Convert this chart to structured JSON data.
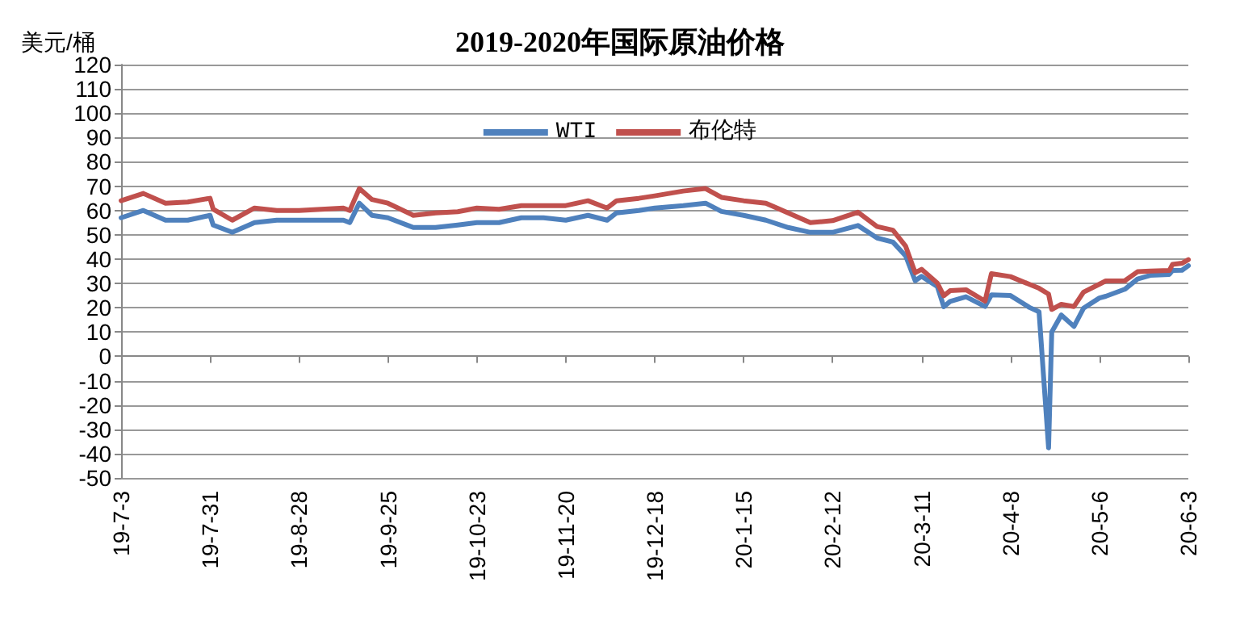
{
  "chart_data": {
    "type": "line",
    "title": "2019-2020年国际原油价格",
    "ylabel": "美元/桶",
    "x": [
      "2019-07-03",
      "2019-07-10",
      "2019-07-17",
      "2019-07-24",
      "2019-07-31",
      "2019-08-01",
      "2019-08-07",
      "2019-08-14",
      "2019-08-21",
      "2019-08-28",
      "2019-09-04",
      "2019-09-11",
      "2019-09-13",
      "2019-09-16",
      "2019-09-20",
      "2019-09-25",
      "2019-10-03",
      "2019-10-10",
      "2019-10-17",
      "2019-10-23",
      "2019-10-30",
      "2019-11-06",
      "2019-11-13",
      "2019-11-20",
      "2019-11-27",
      "2019-12-03",
      "2019-12-06",
      "2019-12-13",
      "2019-12-18",
      "2019-12-27",
      "2020-01-03",
      "2020-01-08",
      "2020-01-15",
      "2020-01-22",
      "2020-01-29",
      "2020-02-05",
      "2020-02-12",
      "2020-02-20",
      "2020-02-26",
      "2020-03-02",
      "2020-03-06",
      "2020-03-09",
      "2020-03-11",
      "2020-03-16",
      "2020-03-18",
      "2020-03-20",
      "2020-03-25",
      "2020-03-31",
      "2020-04-02",
      "2020-04-08",
      "2020-04-14",
      "2020-04-17",
      "2020-04-20",
      "2020-04-21",
      "2020-04-24",
      "2020-04-28",
      "2020-05-01",
      "2020-05-06",
      "2020-05-08",
      "2020-05-14",
      "2020-05-18",
      "2020-05-22",
      "2020-05-28",
      "2020-05-29",
      "2020-06-01",
      "2020-06-03"
    ],
    "series": [
      {
        "name": "WTI",
        "color": "#4f81bd",
        "values": [
          57,
          60,
          56,
          56,
          58,
          54,
          51,
          55,
          56,
          56,
          56,
          56,
          55,
          63,
          58,
          57,
          53,
          53,
          54,
          55,
          55,
          57,
          57,
          56,
          58,
          56,
          59,
          60,
          61,
          62,
          63,
          59.6,
          58,
          56,
          53,
          51,
          51,
          53.8,
          48.7,
          47,
          41.3,
          31.1,
          32.9,
          28.7,
          20.4,
          22.6,
          24.5,
          20.5,
          25.3,
          25,
          20.1,
          18.3,
          -37.6,
          10,
          17,
          12.3,
          19.8,
          24,
          24.7,
          27.6,
          31.8,
          33.3,
          33.7,
          35.3,
          35.4,
          37.3
        ]
      },
      {
        "name": "布伦特",
        "color": "#c0504d",
        "values": [
          64,
          67,
          63,
          63.5,
          65,
          60.5,
          56,
          61,
          60,
          60,
          60.5,
          61,
          60,
          69,
          64.5,
          63,
          58,
          59,
          59.5,
          61,
          60.5,
          62,
          62,
          62,
          64,
          61,
          64,
          65,
          66,
          68,
          69,
          65.4,
          64,
          63,
          59,
          55,
          55.8,
          59.3,
          53.4,
          51.9,
          45.3,
          34.4,
          35.8,
          30.1,
          24.9,
          27,
          27.4,
          22.7,
          34,
          32.8,
          29.6,
          28,
          25.6,
          19.3,
          21.4,
          20.5,
          26.4,
          29.7,
          31,
          31.1,
          34.8,
          35.1,
          35.3,
          37.8,
          38.3,
          39.8
        ]
      }
    ],
    "xlim": [
      "2019-07-03",
      "2020-06-03"
    ],
    "xticks": [
      {
        "value": "2019-07-03",
        "label": "19-7-3"
      },
      {
        "value": "2019-07-31",
        "label": "19-7-31"
      },
      {
        "value": "2019-08-28",
        "label": "19-8-28"
      },
      {
        "value": "2019-09-25",
        "label": "19-9-25"
      },
      {
        "value": "2019-10-23",
        "label": "19-10-23"
      },
      {
        "value": "2019-11-20",
        "label": "19-11-20"
      },
      {
        "value": "2019-12-18",
        "label": "19-12-18"
      },
      {
        "value": "2020-01-15",
        "label": "20-1-15"
      },
      {
        "value": "2020-02-12",
        "label": "20-2-12"
      },
      {
        "value": "2020-03-11",
        "label": "20-3-11"
      },
      {
        "value": "2020-04-08",
        "label": "20-4-8"
      },
      {
        "value": "2020-05-06",
        "label": "20-5-6"
      },
      {
        "value": "2020-06-03",
        "label": "20-6-3"
      }
    ],
    "ylim": [
      -50,
      120
    ],
    "yticks": [
      -50,
      -40,
      -30,
      -20,
      -10,
      0,
      10,
      20,
      30,
      40,
      50,
      60,
      70,
      80,
      90,
      100,
      110,
      120
    ],
    "grid": "y",
    "legend": "top",
    "marker": "none",
    "line_style": "solid"
  }
}
